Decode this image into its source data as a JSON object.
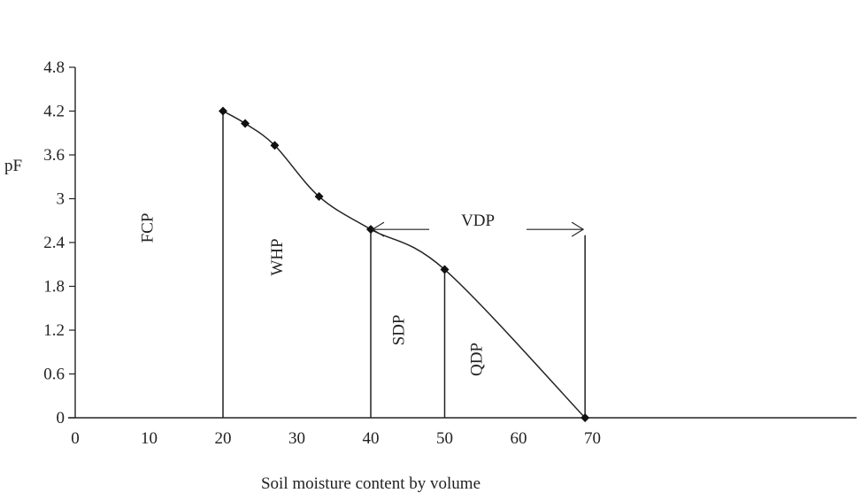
{
  "chart_data": {
    "type": "line",
    "title": "",
    "xlabel": "Soil moisture content by volume",
    "ylabel": "pF",
    "xlim": [
      0,
      70
    ],
    "ylim": [
      0,
      4.8
    ],
    "x_ticks": [
      0,
      10,
      20,
      30,
      40,
      50,
      60,
      70
    ],
    "y_ticks": [
      0,
      0.6,
      1.2,
      1.8,
      2.4,
      3,
      3.6,
      4.2,
      4.8
    ],
    "x_tick_labels": [
      "0",
      "10",
      "20",
      "30",
      "40",
      "50",
      "60",
      "70"
    ],
    "y_tick_labels": [
      "0",
      "0.6",
      "1.2",
      "1.8",
      "2.4",
      "3",
      "3.6",
      "4.2",
      "4.8"
    ],
    "grid": false,
    "legend": "none",
    "series": [
      {
        "x": [
          20,
          23,
          27,
          33,
          40,
          50,
          69
        ],
        "y": [
          4.2,
          4.03,
          3.73,
          3.03,
          2.58,
          2.03,
          0
        ]
      }
    ],
    "vertical_lines": [
      {
        "x": 20,
        "y_top": 4.2
      },
      {
        "x": 40,
        "y_top": 2.58
      },
      {
        "x": 50,
        "y_top": 2.03
      },
      {
        "x": 69,
        "y_top": 2.5
      }
    ],
    "annotations": {
      "fcp": {
        "text": "FCP",
        "x": 10.5,
        "y": 2.6
      },
      "whp": {
        "text": "WHP",
        "x": 28,
        "y": 2.2
      },
      "sdp": {
        "text": "SDP",
        "x": 44.5,
        "y": 1.2
      },
      "qdp": {
        "text": "QDP",
        "x": 55,
        "y": 0.8
      },
      "vdp": {
        "text": "VDP",
        "x_from": 40,
        "x_to": 69,
        "y": 2.58
      }
    }
  }
}
